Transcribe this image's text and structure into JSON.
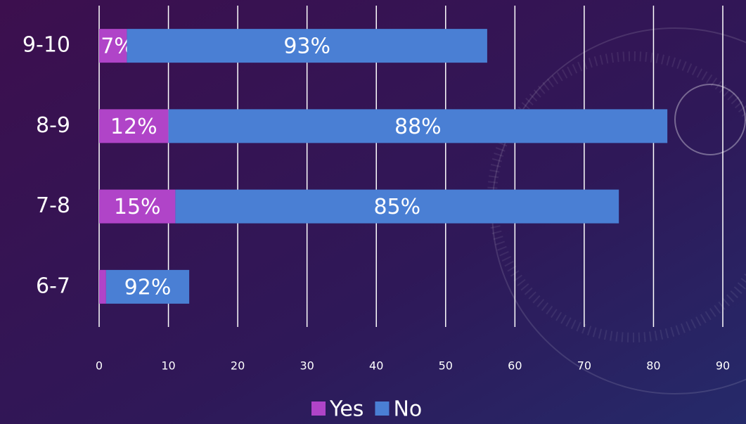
{
  "chart_data": {
    "type": "stacked-bar-horizontal",
    "categories": [
      "6-7",
      "7-8",
      "8-9",
      "9-10"
    ],
    "series": [
      {
        "name": "Yes",
        "color": "#b044c8",
        "values": [
          1,
          11,
          10,
          4
        ],
        "data_labels": [
          null,
          "15%",
          "12%",
          "7%"
        ]
      },
      {
        "name": "No",
        "color": "#4a7fd4",
        "values": [
          12,
          64,
          72,
          52
        ],
        "data_labels": [
          "92%",
          "85%",
          "88%",
          "93%"
        ]
      }
    ],
    "xlim": [
      0,
      90
    ],
    "xticks": [
      0,
      10,
      20,
      30,
      40,
      50,
      60,
      70,
      80,
      90
    ],
    "grid": true,
    "legend": "bottom"
  }
}
